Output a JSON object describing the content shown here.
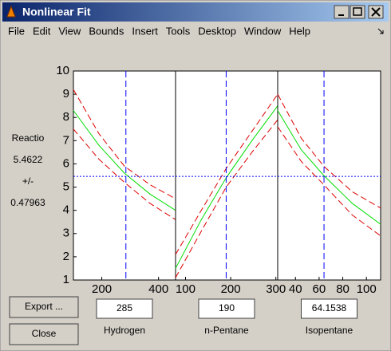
{
  "window": {
    "title": "Nonlinear Fit",
    "menu": [
      "File",
      "Edit",
      "View",
      "Bounds",
      "Insert",
      "Tools",
      "Desktop",
      "Window",
      "Help"
    ]
  },
  "response": {
    "label": "Reactio",
    "value": 5.4622,
    "pm_label": "+/-",
    "pm": 0.47963
  },
  "buttons": [
    "Export ...",
    "Close"
  ],
  "chart_data": [
    {
      "type": "line",
      "xlabel": "Hydrogen",
      "current_x": 285,
      "xlim": [
        100,
        460
      ],
      "xticks": [
        200,
        400
      ],
      "ylim": [
        1,
        10
      ],
      "yticks": [
        1,
        2,
        3,
        4,
        5,
        6,
        7,
        8,
        9,
        10
      ],
      "x": [
        100,
        190,
        280,
        370,
        460
      ],
      "series": [
        {
          "color": "#00dd00",
          "linestyle": "solid",
          "values": [
            8.3,
            6.8,
            5.6,
            4.7,
            4.0
          ]
        },
        {
          "color": "#dd0000",
          "linestyle": "dashed",
          "values": [
            7.5,
            6.2,
            5.2,
            4.3,
            3.6
          ]
        },
        {
          "color": "#dd0000",
          "linestyle": "dashed",
          "values": [
            9.2,
            7.3,
            5.9,
            5.1,
            4.5
          ]
        }
      ]
    },
    {
      "type": "line",
      "xlabel": "n-Pentane",
      "current_x": 190,
      "xlim": [
        78,
        304
      ],
      "xticks": [
        100,
        200,
        300
      ],
      "ylim": [
        1,
        10
      ],
      "x": [
        78,
        135,
        190,
        247,
        304
      ],
      "series": [
        {
          "color": "#00dd00",
          "linestyle": "solid",
          "values": [
            1.5,
            3.6,
            5.4,
            7.0,
            8.5
          ]
        },
        {
          "color": "#dd0000",
          "linestyle": "dashed",
          "values": [
            1.1,
            3.1,
            5.0,
            6.5,
            7.9
          ]
        },
        {
          "color": "#dd0000",
          "linestyle": "dashed",
          "values": [
            2.1,
            4.0,
            5.8,
            7.4,
            9.0
          ]
        }
      ]
    },
    {
      "type": "line",
      "xlabel": "Isopentane",
      "current_x": 64.1538,
      "xlim": [
        25,
        112
      ],
      "xticks": [
        40,
        60,
        80,
        100
      ],
      "ylim": [
        1,
        10
      ],
      "x": [
        25,
        45,
        64,
        88,
        112
      ],
      "series": [
        {
          "color": "#00dd00",
          "linestyle": "solid",
          "values": [
            8.3,
            6.6,
            5.5,
            4.3,
            3.4
          ]
        },
        {
          "color": "#dd0000",
          "linestyle": "dashed",
          "values": [
            7.6,
            6.1,
            5.1,
            3.8,
            2.9
          ]
        },
        {
          "color": "#dd0000",
          "linestyle": "dashed",
          "values": [
            9.0,
            7.1,
            5.9,
            4.8,
            4.1
          ]
        }
      ]
    }
  ]
}
